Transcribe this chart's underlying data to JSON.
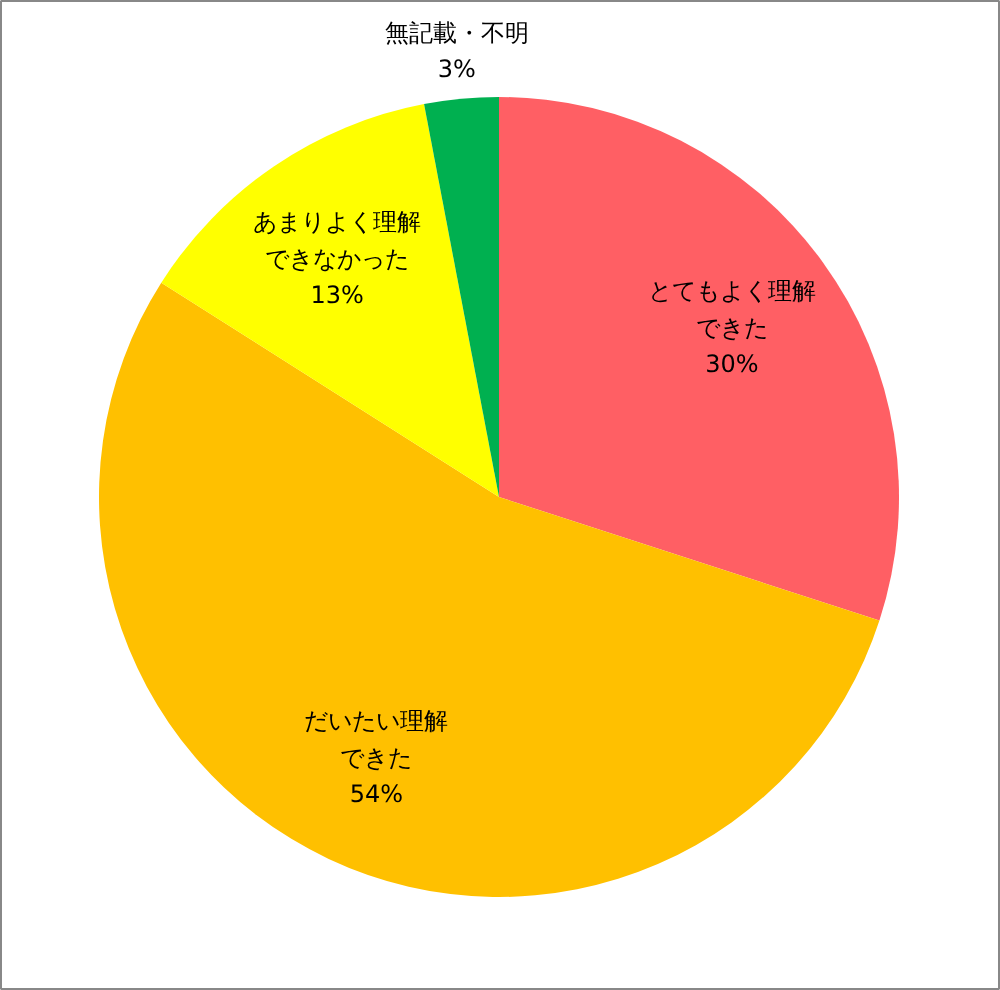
{
  "chart_data": {
    "type": "pie",
    "categories": [
      "とてもよく理解できた",
      "だいたい理解できた",
      "あまりよく理解できなかった",
      "無記載・不明"
    ],
    "values": [
      30,
      54,
      13,
      3
    ],
    "colors": [
      "#ff5f64",
      "#ffc000",
      "#ffff00",
      "#00b050"
    ],
    "value_labels": [
      "30%",
      "54%",
      "13%",
      "3%"
    ]
  }
}
